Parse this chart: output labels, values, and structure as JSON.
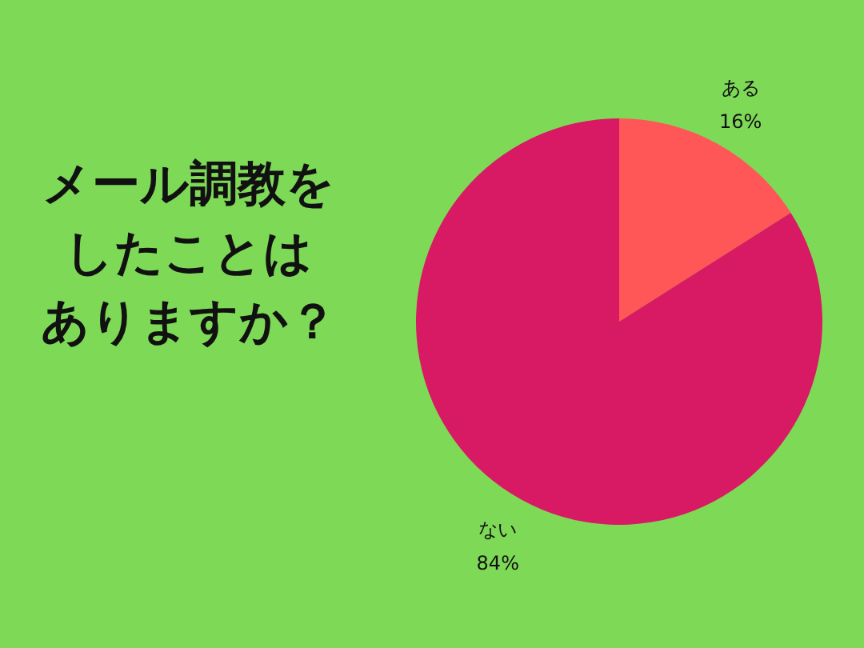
{
  "chart_data": {
    "type": "pie",
    "annotations": [
      "メール調教を",
      "したことは",
      "ありますか？"
    ],
    "categories": [
      "ある",
      "ない"
    ],
    "values": [
      16,
      84
    ],
    "value_labels": [
      "16%",
      "84%"
    ],
    "colors": [
      "#ff5757",
      "#d81964"
    ]
  }
}
